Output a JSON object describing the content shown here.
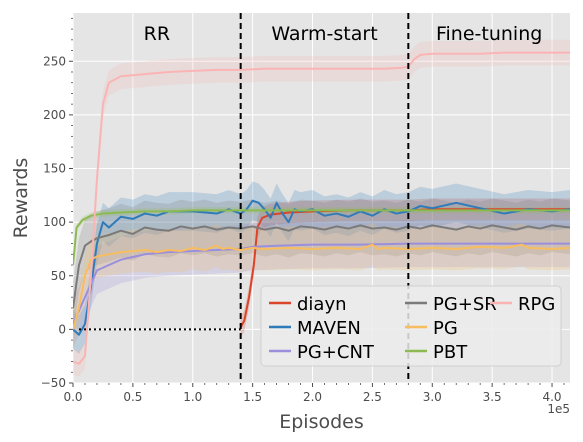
{
  "chart_data": {
    "type": "line",
    "xlabel": "Episodes",
    "ylabel": "Rewards",
    "x_offset_label": "1e5",
    "xlim": [
      0,
      415000
    ],
    "ylim": [
      -50,
      295
    ],
    "xticks": [
      0,
      50000,
      100000,
      150000,
      200000,
      250000,
      300000,
      350000,
      400000
    ],
    "xtick_labels": [
      "0.0",
      "0.5",
      "1.0",
      "1.5",
      "2.0",
      "2.5",
      "3.0",
      "3.5",
      "4.0"
    ],
    "yticks": [
      -50,
      0,
      50,
      100,
      150,
      200,
      250
    ],
    "ytick_labels": [
      "−50",
      "0",
      "50",
      "100",
      "150",
      "200",
      "250"
    ],
    "grid": true,
    "legend_position": "lower-right",
    "phases": [
      {
        "label": "RR",
        "start": 0,
        "end": 140000
      },
      {
        "label": "Warm-start",
        "start": 140000,
        "end": 280000
      },
      {
        "label": "Fine-tuning",
        "start": 280000,
        "end": 415000
      }
    ],
    "phase_boundaries": [
      140000,
      280000
    ],
    "reference_line": {
      "y": 0,
      "x_start": 5000,
      "x_end": 140000
    },
    "series": [
      {
        "name": "diayn",
        "color": "#d9442b",
        "points": [
          [
            140000,
            2
          ],
          [
            143000,
            8
          ],
          [
            147000,
            30
          ],
          [
            151000,
            60
          ],
          [
            154000,
            95
          ],
          [
            158000,
            104
          ],
          [
            165000,
            107
          ],
          [
            180000,
            109
          ],
          [
            200000,
            110
          ],
          [
            230000,
            111
          ],
          [
            260000,
            111
          ],
          [
            280000,
            111
          ],
          [
            300000,
            112
          ],
          [
            330000,
            112
          ],
          [
            360000,
            112
          ],
          [
            390000,
            112
          ],
          [
            415000,
            112
          ]
        ],
        "band": 10
      },
      {
        "name": "MAVEN",
        "color": "#2f7bb9",
        "points": [
          [
            0,
            0
          ],
          [
            5000,
            -5
          ],
          [
            10000,
            5
          ],
          [
            15000,
            40
          ],
          [
            20000,
            80
          ],
          [
            25000,
            100
          ],
          [
            30000,
            95
          ],
          [
            40000,
            105
          ],
          [
            50000,
            103
          ],
          [
            60000,
            108
          ],
          [
            70000,
            106
          ],
          [
            80000,
            110
          ],
          [
            100000,
            110
          ],
          [
            120000,
            108
          ],
          [
            130000,
            112
          ],
          [
            140000,
            108
          ],
          [
            145000,
            112
          ],
          [
            150000,
            120
          ],
          [
            155000,
            118
          ],
          [
            160000,
            112
          ],
          [
            165000,
            104
          ],
          [
            170000,
            118
          ],
          [
            175000,
            108
          ],
          [
            180000,
            100
          ],
          [
            185000,
            112
          ],
          [
            190000,
            110
          ],
          [
            200000,
            112
          ],
          [
            210000,
            106
          ],
          [
            220000,
            108
          ],
          [
            230000,
            105
          ],
          [
            240000,
            110
          ],
          [
            250000,
            106
          ],
          [
            260000,
            112
          ],
          [
            270000,
            108
          ],
          [
            280000,
            110
          ],
          [
            290000,
            115
          ],
          [
            300000,
            113
          ],
          [
            320000,
            118
          ],
          [
            340000,
            113
          ],
          [
            360000,
            108
          ],
          [
            380000,
            112
          ],
          [
            400000,
            110
          ],
          [
            415000,
            112
          ]
        ],
        "band": 18
      },
      {
        "name": "PG+CNT",
        "color": "#9b8fdc",
        "points": [
          [
            0,
            5
          ],
          [
            10000,
            30
          ],
          [
            20000,
            55
          ],
          [
            40000,
            65
          ],
          [
            60000,
            70
          ],
          [
            80000,
            72
          ],
          [
            100000,
            73
          ],
          [
            120000,
            74
          ],
          [
            140000,
            75
          ],
          [
            150000,
            77
          ],
          [
            170000,
            78
          ],
          [
            200000,
            79
          ],
          [
            240000,
            79
          ],
          [
            280000,
            80
          ],
          [
            320000,
            80
          ],
          [
            360000,
            80
          ],
          [
            415000,
            80
          ]
        ],
        "band": 22
      },
      {
        "name": "PG+SR",
        "color": "#7a7a7a",
        "points": [
          [
            0,
            20
          ],
          [
            5000,
            60
          ],
          [
            10000,
            78
          ],
          [
            15000,
            82
          ],
          [
            20000,
            85
          ],
          [
            30000,
            88
          ],
          [
            40000,
            92
          ],
          [
            50000,
            89
          ],
          [
            60000,
            95
          ],
          [
            70000,
            93
          ],
          [
            80000,
            92
          ],
          [
            90000,
            96
          ],
          [
            100000,
            94
          ],
          [
            110000,
            96
          ],
          [
            120000,
            93
          ],
          [
            130000,
            95
          ],
          [
            140000,
            94
          ],
          [
            150000,
            96
          ],
          [
            160000,
            93
          ],
          [
            170000,
            95
          ],
          [
            180000,
            92
          ],
          [
            190000,
            96
          ],
          [
            200000,
            95
          ],
          [
            210000,
            93
          ],
          [
            220000,
            96
          ],
          [
            230000,
            94
          ],
          [
            240000,
            97
          ],
          [
            250000,
            94
          ],
          [
            260000,
            95
          ],
          [
            270000,
            93
          ],
          [
            280000,
            96
          ],
          [
            290000,
            94
          ],
          [
            300000,
            97
          ],
          [
            310000,
            95
          ],
          [
            320000,
            93
          ],
          [
            330000,
            96
          ],
          [
            340000,
            94
          ],
          [
            350000,
            97
          ],
          [
            360000,
            95
          ],
          [
            370000,
            93
          ],
          [
            380000,
            96
          ],
          [
            390000,
            94
          ],
          [
            400000,
            97
          ],
          [
            415000,
            95
          ]
        ],
        "band": 25
      },
      {
        "name": "PG",
        "color": "#f7bd5f",
        "points": [
          [
            0,
            0
          ],
          [
            5000,
            20
          ],
          [
            10000,
            50
          ],
          [
            15000,
            65
          ],
          [
            20000,
            68
          ],
          [
            30000,
            70
          ],
          [
            40000,
            72
          ],
          [
            50000,
            73
          ],
          [
            60000,
            74
          ],
          [
            70000,
            72
          ],
          [
            80000,
            74
          ],
          [
            90000,
            73
          ],
          [
            100000,
            76
          ],
          [
            110000,
            74
          ],
          [
            120000,
            78
          ],
          [
            125000,
            75
          ],
          [
            130000,
            76
          ],
          [
            140000,
            74
          ],
          [
            150000,
            76
          ],
          [
            160000,
            75
          ],
          [
            180000,
            76
          ],
          [
            200000,
            75
          ],
          [
            220000,
            76
          ],
          [
            240000,
            75
          ],
          [
            250000,
            79
          ],
          [
            255000,
            75
          ],
          [
            260000,
            76
          ],
          [
            280000,
            75
          ],
          [
            300000,
            76
          ],
          [
            320000,
            75
          ],
          [
            340000,
            77
          ],
          [
            360000,
            76
          ],
          [
            375000,
            79
          ],
          [
            380000,
            76
          ],
          [
            400000,
            75
          ],
          [
            415000,
            76
          ]
        ],
        "band": 20
      },
      {
        "name": "PBT",
        "color": "#8cba52",
        "points": [
          [
            0,
            60
          ],
          [
            3000,
            95
          ],
          [
            8000,
            102
          ],
          [
            15000,
            106
          ],
          [
            25000,
            108
          ],
          [
            40000,
            109
          ],
          [
            60000,
            110
          ],
          [
            80000,
            110
          ],
          [
            100000,
            111
          ],
          [
            140000,
            111
          ],
          [
            180000,
            111
          ],
          [
            220000,
            111
          ],
          [
            260000,
            111
          ],
          [
            300000,
            111
          ],
          [
            340000,
            111
          ],
          [
            380000,
            111
          ],
          [
            415000,
            111
          ]
        ],
        "band": 3
      },
      {
        "name": "RPG",
        "color": "#fab4b4",
        "points": [
          [
            0,
            -30
          ],
          [
            5000,
            -32
          ],
          [
            10000,
            -25
          ],
          [
            15000,
            50
          ],
          [
            20000,
            140
          ],
          [
            25000,
            210
          ],
          [
            30000,
            230
          ],
          [
            40000,
            236
          ],
          [
            50000,
            237
          ],
          [
            60000,
            238
          ],
          [
            70000,
            239
          ],
          [
            80000,
            240
          ],
          [
            100000,
            241
          ],
          [
            120000,
            242
          ],
          [
            140000,
            242
          ],
          [
            160000,
            243
          ],
          [
            180000,
            243
          ],
          [
            200000,
            243
          ],
          [
            220000,
            243
          ],
          [
            240000,
            243
          ],
          [
            260000,
            243
          ],
          [
            275000,
            244
          ],
          [
            280000,
            245
          ],
          [
            285000,
            252
          ],
          [
            290000,
            256
          ],
          [
            300000,
            257
          ],
          [
            320000,
            257
          ],
          [
            340000,
            257
          ],
          [
            360000,
            258
          ],
          [
            380000,
            258
          ],
          [
            400000,
            258
          ],
          [
            415000,
            258
          ]
        ],
        "band": 12
      }
    ]
  }
}
